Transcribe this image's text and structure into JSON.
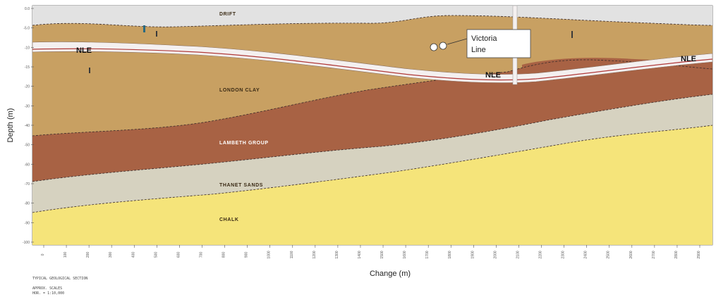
{
  "layers": {
    "drift": "DRIFT",
    "london_clay": "LONDON CLAY",
    "lambeth_group": "LAMBETH GROUP",
    "thanet_sands": "THANET SANDS",
    "chalk": "CHALK"
  },
  "tunnel_labels": {
    "left": "NLE",
    "center": "NLE",
    "right": "NLE"
  },
  "callout": {
    "line1": "Victoria",
    "line2": "Line"
  },
  "axes": {
    "x_title": "Change  (m)",
    "y_title": "Depth (m)",
    "y_ticks": [
      "0.0",
      "-5.0",
      "-10",
      "-15",
      "-20",
      "-30",
      "-40",
      "-50",
      "-60",
      "-70",
      "-80",
      "-90",
      "-100"
    ],
    "x_ticks": [
      "0",
      "100",
      "200",
      "300",
      "400",
      "500",
      "600",
      "700",
      "800",
      "900",
      "1000",
      "1100",
      "1200",
      "1300",
      "1400",
      "1500",
      "1600",
      "1700",
      "1800",
      "1900",
      "2000",
      "2100",
      "2200",
      "2300",
      "2400",
      "2500",
      "2600",
      "2700",
      "2800",
      "2900"
    ]
  },
  "footer": {
    "title": "TYPICAL GEOLOGICAL SECTION",
    "scale_line1": "APPROX. SCALES",
    "scale_line2": "HOR. = 1:10,000"
  },
  "colors": {
    "drift": "#e2e2e2",
    "london_clay": "#c8a062",
    "lambeth_group": "#a86244",
    "thanet_sands": "#d6d2c0",
    "chalk": "#f5e47a",
    "tunnel": "#f4f0f0",
    "tunnel_stripe": "#b03a3a"
  }
}
